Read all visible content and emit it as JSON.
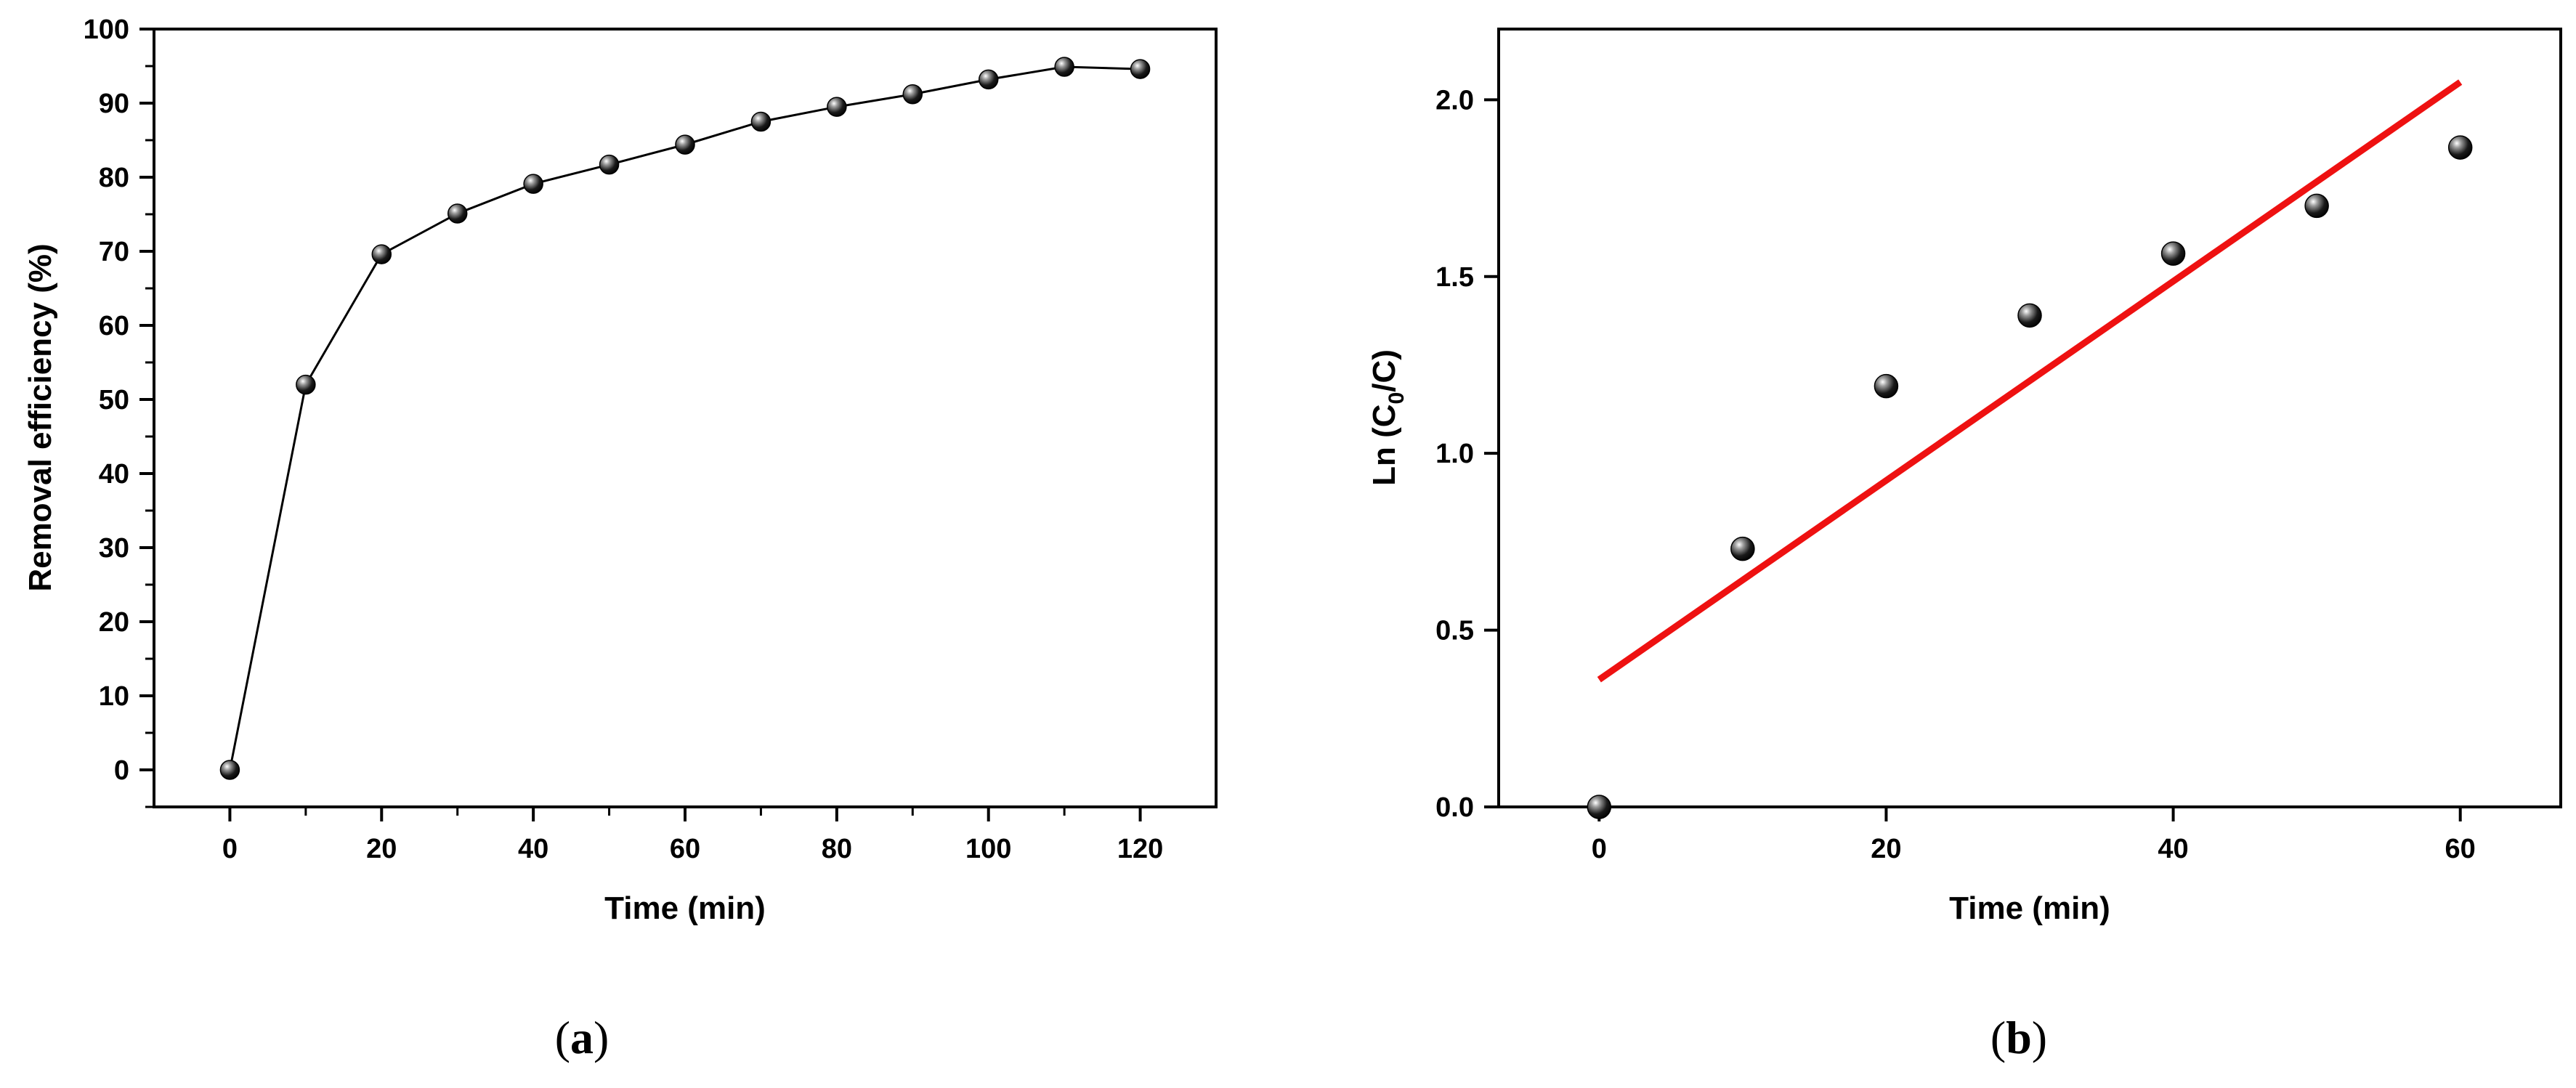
{
  "chart_data": [
    {
      "type": "line",
      "panel_label": "a",
      "xlabel": "Time (min)",
      "ylabel": "Removal efficiency (%)",
      "xlim": [
        -10,
        130
      ],
      "ylim": [
        -5,
        100
      ],
      "xticks": [
        0,
        20,
        40,
        60,
        80,
        100,
        120
      ],
      "yticks": [
        0,
        10,
        20,
        30,
        40,
        50,
        60,
        70,
        80,
        90,
        100
      ],
      "grid": false,
      "series": [
        {
          "marker": "sphere",
          "color": "#000000",
          "x": [
            0,
            10,
            20,
            30,
            40,
            50,
            60,
            70,
            80,
            90,
            100,
            110,
            120
          ],
          "y": [
            0,
            52,
            69.6,
            75.1,
            79.1,
            81.7,
            84.4,
            87.5,
            89.5,
            91.2,
            93.2,
            94.9,
            94.6
          ]
        }
      ]
    },
    {
      "type": "scatter",
      "panel_label": "b",
      "xlabel": "Time (min)",
      "ylabel": {
        "pre": "Ln (C",
        "sub": "0",
        "post": "/C)"
      },
      "xlim": [
        -7,
        67
      ],
      "ylim": [
        0,
        2.2
      ],
      "xticks": [
        0,
        20,
        40,
        60
      ],
      "yticks": [
        0.0,
        0.5,
        1.0,
        1.5,
        2.0
      ],
      "grid": false,
      "series": [
        {
          "marker": "sphere",
          "color": "#000000",
          "x": [
            0,
            10,
            20,
            30,
            40,
            50,
            60
          ],
          "y": [
            0.0,
            0.73,
            1.19,
            1.39,
            1.565,
            1.7,
            1.865
          ]
        }
      ],
      "fit_line": {
        "color": "#ee1111",
        "x": [
          0,
          60
        ],
        "y": [
          0.36,
          2.05
        ]
      }
    }
  ]
}
